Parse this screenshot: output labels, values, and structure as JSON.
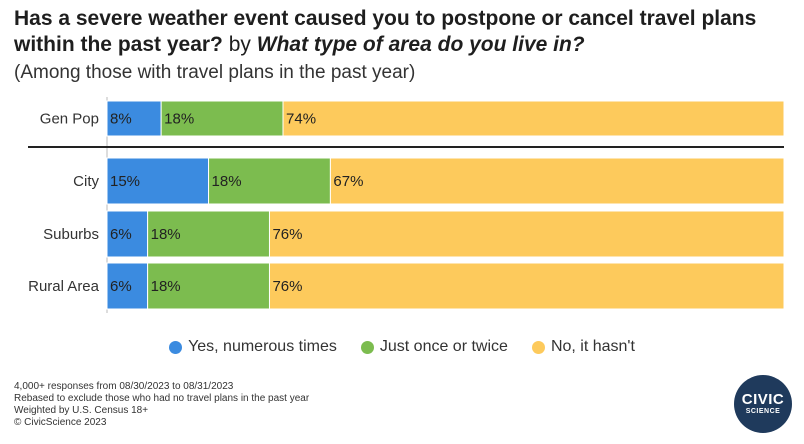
{
  "title": {
    "question": "Has a severe weather event caused you to postpone or cancel travel plans within the past year?",
    "by": "by",
    "crosstab": "What type of area do you live in?"
  },
  "subtitle": "(Among those with travel plans in the past year)",
  "chart_data": {
    "type": "bar",
    "orientation": "horizontal",
    "stacked": true,
    "categories": [
      "Gen Pop",
      "City",
      "Suburbs",
      "Rural Area"
    ],
    "series": [
      {
        "name": "Yes, numerous times",
        "color": "#3b8be0",
        "values": [
          8,
          15,
          6,
          6
        ],
        "labels": [
          "8%",
          "15%",
          "6%",
          "6%"
        ]
      },
      {
        "name": "Just once or twice",
        "color": "#7cbc4f",
        "values": [
          18,
          18,
          18,
          18
        ],
        "labels": [
          "18%",
          "18%",
          "18%",
          "18%"
        ]
      },
      {
        "name": "No, it hasn't",
        "color": "#fdca5c",
        "values": [
          74,
          67,
          76,
          76
        ],
        "labels": [
          "74%",
          "67%",
          "76%",
          "76%"
        ]
      }
    ],
    "xlim": [
      0,
      100
    ],
    "legend": "bottom"
  },
  "footer": {
    "line1": "4,000+ responses from 08/30/2023 to 08/31/2023",
    "line2": "Rebased to exclude those who had no travel plans in the past year",
    "line3": "Weighted by U.S. Census 18+",
    "line4": "© CivicScience 2023"
  },
  "logo": {
    "line1": "CIVIC",
    "line2": "SCIENCE"
  }
}
